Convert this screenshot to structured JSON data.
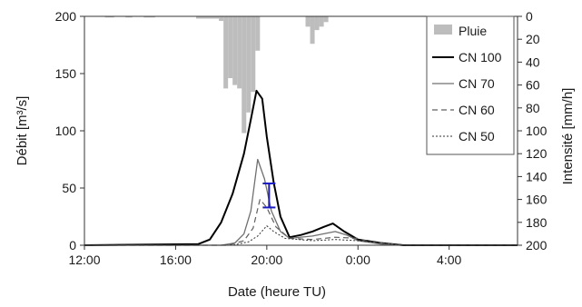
{
  "chart_data": {
    "type": "line",
    "title": "",
    "xlabel": "Date (heure TU)",
    "ylabel_left": "Débit [m³/s]",
    "ylabel_right": "Intensité [mm/h]",
    "x_unit": "hours since 12:00 TU",
    "xlim": [
      0,
      19
    ],
    "ylim_left": [
      0,
      200
    ],
    "ylim_right": [
      200,
      0
    ],
    "x_ticks": [
      {
        "x": 0,
        "label": "12:00"
      },
      {
        "x": 4,
        "label": "16:00"
      },
      {
        "x": 8,
        "label": "20:00"
      },
      {
        "x": 12,
        "label": "0:00"
      },
      {
        "x": 16,
        "label": "4:00"
      }
    ],
    "y_ticks_left": [
      0,
      50,
      100,
      150,
      200
    ],
    "y_ticks_right": [
      0,
      20,
      40,
      60,
      80,
      100,
      120,
      140,
      160,
      180,
      200
    ],
    "grid": false,
    "legend_position": "top-right",
    "rain": {
      "name": "Pluie",
      "color": "#bdbdbd",
      "bins": [
        {
          "x0": 0.9,
          "x1": 1.3,
          "i": 1
        },
        {
          "x0": 1.8,
          "x1": 2.1,
          "i": 1
        },
        {
          "x0": 2.6,
          "x1": 3.1,
          "i": 1
        },
        {
          "x0": 4.9,
          "x1": 5.9,
          "i": 2
        },
        {
          "x0": 5.9,
          "x1": 6.1,
          "i": 4
        },
        {
          "x0": 6.1,
          "x1": 6.3,
          "i": 63
        },
        {
          "x0": 6.3,
          "x1": 6.5,
          "i": 54
        },
        {
          "x0": 6.5,
          "x1": 6.7,
          "i": 60
        },
        {
          "x0": 6.7,
          "x1": 6.9,
          "i": 63
        },
        {
          "x0": 6.9,
          "x1": 7.1,
          "i": 102
        },
        {
          "x0": 7.1,
          "x1": 7.3,
          "i": 84
        },
        {
          "x0": 7.3,
          "x1": 7.5,
          "i": 66
        },
        {
          "x0": 7.5,
          "x1": 7.7,
          "i": 30
        },
        {
          "x0": 9.7,
          "x1": 9.9,
          "i": 9
        },
        {
          "x0": 9.9,
          "x1": 10.1,
          "i": 24
        },
        {
          "x0": 10.1,
          "x1": 10.3,
          "i": 12
        },
        {
          "x0": 10.3,
          "x1": 10.5,
          "i": 9
        },
        {
          "x0": 10.5,
          "x1": 10.7,
          "i": 5
        }
      ]
    },
    "series": [
      {
        "name": "CN 100",
        "color": "#000000",
        "width": 2,
        "dash": "",
        "points": [
          [
            0,
            0
          ],
          [
            5,
            1
          ],
          [
            5.5,
            5
          ],
          [
            6,
            20
          ],
          [
            6.5,
            45
          ],
          [
            7,
            80
          ],
          [
            7.3,
            110
          ],
          [
            7.55,
            135
          ],
          [
            7.8,
            128
          ],
          [
            8,
            95
          ],
          [
            8.3,
            55
          ],
          [
            8.6,
            25
          ],
          [
            9,
            7
          ],
          [
            9.5,
            9
          ],
          [
            10,
            12
          ],
          [
            10.5,
            16
          ],
          [
            10.9,
            19
          ],
          [
            11.4,
            12
          ],
          [
            12,
            5
          ],
          [
            13,
            2
          ],
          [
            14,
            0
          ],
          [
            19,
            0
          ]
        ]
      },
      {
        "name": "CN 70",
        "color": "#707070",
        "width": 1.3,
        "dash": "",
        "points": [
          [
            0,
            0
          ],
          [
            6,
            0
          ],
          [
            6.6,
            2
          ],
          [
            7,
            10
          ],
          [
            7.3,
            30
          ],
          [
            7.6,
            75
          ],
          [
            7.9,
            58
          ],
          [
            8.2,
            30
          ],
          [
            8.6,
            12
          ],
          [
            9,
            6
          ],
          [
            10,
            8
          ],
          [
            11,
            12
          ],
          [
            11.5,
            9
          ],
          [
            12,
            4
          ],
          [
            13,
            1
          ],
          [
            14,
            0
          ],
          [
            19,
            0
          ]
        ]
      },
      {
        "name": "CN 60",
        "color": "#606060",
        "width": 1.2,
        "dash": "6,4",
        "points": [
          [
            0,
            0
          ],
          [
            6.3,
            0
          ],
          [
            7,
            4
          ],
          [
            7.4,
            15
          ],
          [
            7.7,
            40
          ],
          [
            8,
            33
          ],
          [
            8.4,
            16
          ],
          [
            9,
            6
          ],
          [
            10,
            5
          ],
          [
            11,
            7
          ],
          [
            12,
            6
          ],
          [
            12.5,
            3
          ],
          [
            13.5,
            1
          ],
          [
            14,
            0
          ],
          [
            19,
            0
          ]
        ]
      },
      {
        "name": "CN 50",
        "color": "#303030",
        "width": 1,
        "dash": "2,2",
        "points": [
          [
            0,
            0
          ],
          [
            6.5,
            0
          ],
          [
            7.2,
            3
          ],
          [
            7.6,
            8
          ],
          [
            8,
            17
          ],
          [
            8.3,
            12
          ],
          [
            8.8,
            6
          ],
          [
            10,
            4
          ],
          [
            11,
            5
          ],
          [
            12,
            4
          ],
          [
            13,
            2
          ],
          [
            14,
            0
          ],
          [
            19,
            0
          ]
        ]
      }
    ],
    "error_bar": {
      "x": 8.1,
      "low": 33,
      "high": 54,
      "color": "#1b1bc4"
    }
  }
}
